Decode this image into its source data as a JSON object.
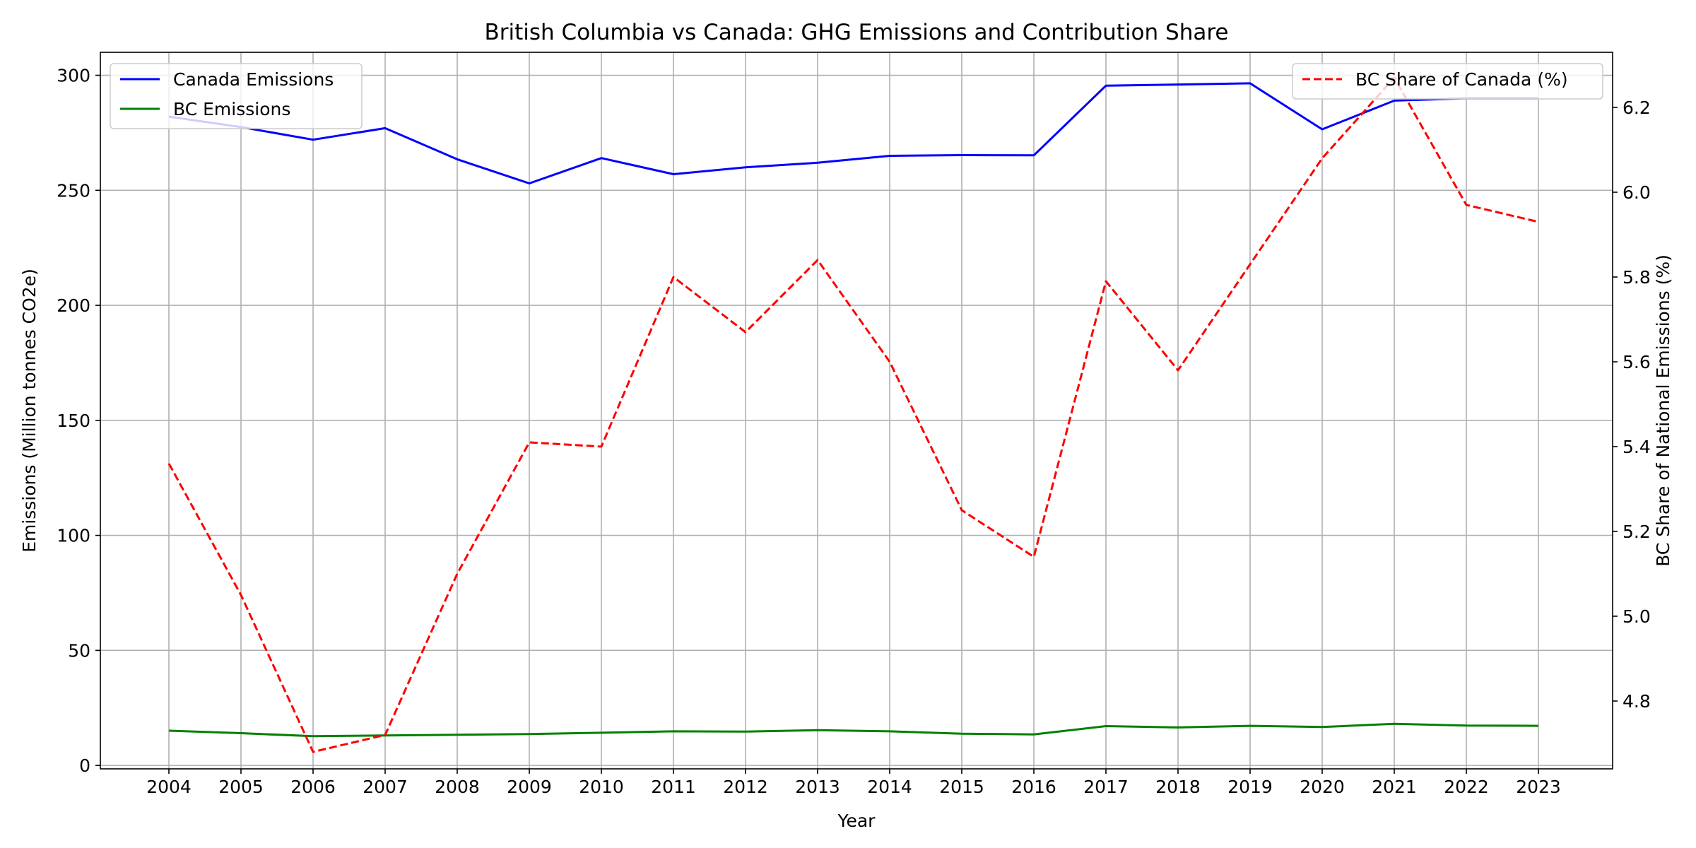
{
  "chart_data": {
    "type": "line",
    "title": "British Columbia vs Canada: GHG Emissions and Contribution Share",
    "xlabel": "Year",
    "ylabel": "Emissions (Million tonnes CO2e)",
    "y2label": "BC Share of National Emissions (%)",
    "grid": true,
    "categories": [
      "2004",
      "2005",
      "2006",
      "2007",
      "2008",
      "2009",
      "2010",
      "2011",
      "2012",
      "2013",
      "2014",
      "2015",
      "2016",
      "2017",
      "2018",
      "2019",
      "2020",
      "2021",
      "2022",
      "2023"
    ],
    "ylim": [
      -1.5,
      310
    ],
    "yticks": [
      0,
      50,
      100,
      150,
      200,
      250,
      300
    ],
    "y2lim": [
      4.64,
      6.33
    ],
    "y2ticks": [
      4.8,
      5.0,
      5.2,
      5.4,
      5.6,
      5.8,
      6.0,
      6.2
    ],
    "y2tick_labels": [
      "4.8",
      "5.0",
      "5.2",
      "5.4",
      "5.6",
      "5.8",
      "6.0",
      "6.2"
    ],
    "series": [
      {
        "name": "Canada Emissions",
        "axis": "left",
        "color": "#0000ff",
        "style": "solid",
        "values": [
          282,
          277.5,
          272,
          277,
          263.5,
          253,
          264,
          257,
          260,
          262,
          265,
          265.3,
          265.2,
          295.5,
          296,
          296.5,
          276.5,
          289,
          290,
          290
        ]
      },
      {
        "name": "BC Emissions",
        "axis": "left",
        "color": "#008000",
        "style": "solid",
        "values": [
          15.1,
          14,
          12.7,
          13,
          13.3,
          13.6,
          14.2,
          14.8,
          14.7,
          15.3,
          14.8,
          13.8,
          13.5,
          17.1,
          16.5,
          17.2,
          16.7,
          18.1,
          17.3,
          17.2
        ]
      },
      {
        "name": "BC Share of Canada (%)",
        "axis": "right",
        "color": "#ff0000",
        "style": "dashed",
        "values": [
          5.36,
          5.05,
          4.68,
          4.72,
          5.1,
          5.41,
          5.4,
          5.8,
          5.67,
          5.84,
          5.6,
          5.25,
          5.14,
          5.79,
          5.58,
          5.83,
          6.08,
          6.27,
          5.97,
          5.93
        ]
      }
    ],
    "legends": [
      {
        "placement": "top-left",
        "entries": [
          "Canada Emissions",
          "BC Emissions"
        ]
      },
      {
        "placement": "top-right",
        "entries": [
          "BC Share of Canada (%)"
        ]
      }
    ]
  }
}
